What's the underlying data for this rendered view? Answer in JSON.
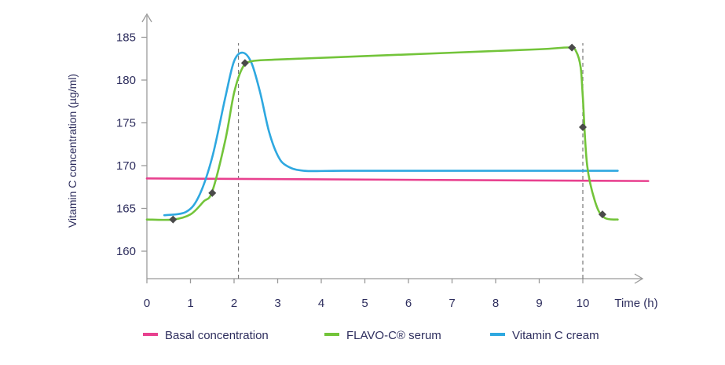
{
  "chart_data": {
    "type": "line",
    "title": "",
    "xlabel": "Time (h)",
    "ylabel": "Vitamin C concentration (µg/ml)",
    "xlim": [
      0,
      11.5
    ],
    "ylim": [
      157,
      189
    ],
    "x_ticks": [
      "0",
      "1",
      "2",
      "3",
      "4",
      "5",
      "6",
      "7",
      "8",
      "9",
      "10"
    ],
    "y_ticks": [
      "160",
      "165",
      "170",
      "175",
      "180",
      "185"
    ],
    "legend_position": "bottom",
    "grid": false,
    "series": [
      {
        "name": "Basal concentration",
        "color": "#e8418f",
        "x": [
          0,
          11.5
        ],
        "y": [
          168.5,
          168.2
        ],
        "markers": []
      },
      {
        "name": "FLAVO-C® serum",
        "color": "#73c43a",
        "x": [
          0,
          0.6,
          1.0,
          1.3,
          1.5,
          1.8,
          2.0,
          2.2,
          2.4,
          3,
          5,
          7,
          9,
          9.7,
          9.85,
          9.95,
          10.0,
          10.1,
          10.3,
          10.5,
          10.8
        ],
        "y": [
          163.7,
          163.7,
          164.3,
          165.8,
          167.0,
          173.0,
          178.5,
          181.5,
          182.2,
          182.4,
          182.8,
          183.2,
          183.6,
          183.8,
          183.3,
          181.5,
          178.0,
          170.0,
          165.5,
          163.9,
          163.7
        ],
        "markers": [
          [
            0.6,
            163.7
          ],
          [
            1.5,
            166.8
          ],
          [
            2.25,
            182.0
          ],
          [
            9.75,
            183.8
          ],
          [
            10.0,
            174.5
          ],
          [
            10.45,
            164.3
          ]
        ]
      },
      {
        "name": "Vitamin C cream",
        "color": "#2ea8e0",
        "x": [
          0.4,
          0.9,
          1.2,
          1.5,
          1.8,
          2.0,
          2.2,
          2.4,
          2.6,
          2.8,
          3.0,
          3.2,
          3.6,
          4.5,
          7,
          10,
          10.8
        ],
        "y": [
          164.2,
          164.6,
          166.5,
          171.0,
          178.0,
          182.2,
          183.2,
          182.0,
          178.5,
          174.0,
          171.2,
          170.0,
          169.4,
          169.4,
          169.4,
          169.4,
          169.4
        ],
        "markers": []
      }
    ],
    "vlines": [
      2.1,
      10.0
    ],
    "x_axis_ticks_numeric": [
      0,
      1,
      2,
      3,
      4,
      5,
      6,
      7,
      8,
      9,
      10
    ],
    "y_axis_ticks_numeric": [
      160,
      165,
      170,
      175,
      180,
      185
    ]
  }
}
